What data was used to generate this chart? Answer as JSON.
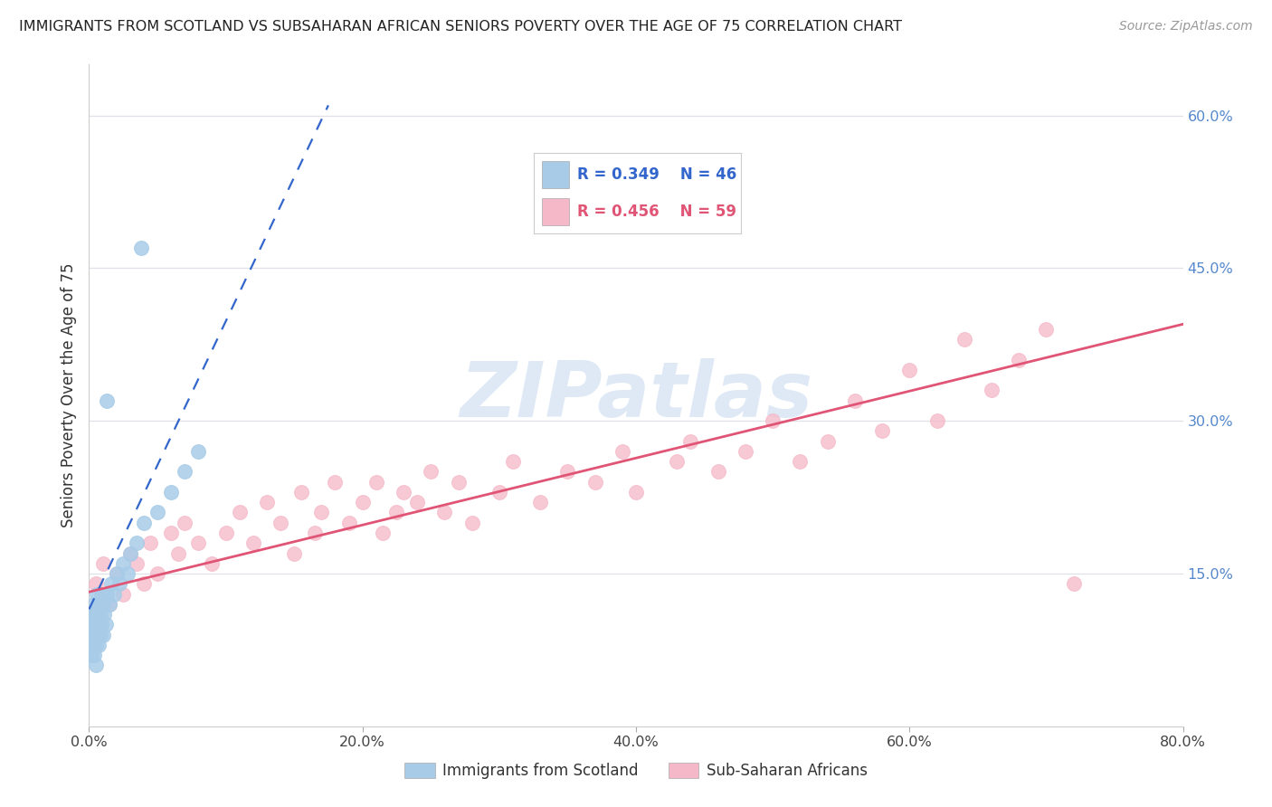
{
  "title": "IMMIGRANTS FROM SCOTLAND VS SUBSAHARAN AFRICAN SENIORS POVERTY OVER THE AGE OF 75 CORRELATION CHART",
  "source": "Source: ZipAtlas.com",
  "ylabel": "Seniors Poverty Over the Age of 75",
  "xlim": [
    0.0,
    0.8
  ],
  "ylim": [
    0.0,
    0.65
  ],
  "xticks": [
    0.0,
    0.2,
    0.4,
    0.6,
    0.8
  ],
  "xtick_labels": [
    "0.0%",
    "20.0%",
    "40.0%",
    "60.0%",
    "80.0%"
  ],
  "yticks_right": [
    0.15,
    0.3,
    0.45,
    0.6
  ],
  "ytick_labels_right": [
    "15.0%",
    "30.0%",
    "45.0%",
    "60.0%"
  ],
  "grid_color": "#e0e0e8",
  "background_color": "#ffffff",
  "watermark_text": "ZIPatlas",
  "watermark_color": "#c5d8f0",
  "scotland_color": "#a8cce8",
  "subsaharan_color": "#f5b8c8",
  "scotland_line_color": "#3366cc",
  "subsaharan_line_color": "#e05575",
  "scotland_line_style": "--",
  "subsaharan_line_style": "-",
  "legend_R1": "R = 0.349",
  "legend_N1": "N = 46",
  "legend_R2": "R = 0.456",
  "legend_N2": "N = 59",
  "legend_color1": "#3366cc",
  "legend_color2": "#e05575",
  "label1": "Immigrants from Scotland",
  "label2": "Sub-Saharan Africans",
  "scot_x": [
    0.001,
    0.001,
    0.002,
    0.002,
    0.002,
    0.003,
    0.003,
    0.003,
    0.003,
    0.004,
    0.004,
    0.004,
    0.005,
    0.005,
    0.005,
    0.006,
    0.006,
    0.006,
    0.007,
    0.007,
    0.007,
    0.008,
    0.008,
    0.009,
    0.009,
    0.01,
    0.01,
    0.011,
    0.012,
    0.013,
    0.015,
    0.016,
    0.018,
    0.02,
    0.022,
    0.025,
    0.028,
    0.03,
    0.035,
    0.04,
    0.05,
    0.06,
    0.07,
    0.08,
    0.013,
    0.038
  ],
  "scot_y": [
    0.08,
    0.09,
    0.07,
    0.1,
    0.11,
    0.08,
    0.09,
    0.1,
    0.12,
    0.07,
    0.09,
    0.11,
    0.08,
    0.1,
    0.06,
    0.09,
    0.11,
    0.13,
    0.1,
    0.08,
    0.12,
    0.09,
    0.11,
    0.1,
    0.13,
    0.09,
    0.12,
    0.11,
    0.1,
    0.13,
    0.12,
    0.14,
    0.13,
    0.15,
    0.14,
    0.16,
    0.15,
    0.17,
    0.18,
    0.2,
    0.21,
    0.23,
    0.25,
    0.27,
    0.32,
    0.47
  ],
  "sub_x": [
    0.005,
    0.01,
    0.015,
    0.02,
    0.025,
    0.03,
    0.035,
    0.04,
    0.045,
    0.05,
    0.06,
    0.065,
    0.07,
    0.08,
    0.09,
    0.1,
    0.11,
    0.12,
    0.13,
    0.14,
    0.15,
    0.155,
    0.165,
    0.17,
    0.18,
    0.19,
    0.2,
    0.21,
    0.215,
    0.225,
    0.23,
    0.24,
    0.25,
    0.26,
    0.27,
    0.28,
    0.3,
    0.31,
    0.33,
    0.35,
    0.37,
    0.39,
    0.4,
    0.43,
    0.44,
    0.46,
    0.48,
    0.5,
    0.52,
    0.54,
    0.56,
    0.58,
    0.6,
    0.62,
    0.64,
    0.66,
    0.68,
    0.7,
    0.72
  ],
  "sub_y": [
    0.14,
    0.16,
    0.12,
    0.15,
    0.13,
    0.17,
    0.16,
    0.14,
    0.18,
    0.15,
    0.19,
    0.17,
    0.2,
    0.18,
    0.16,
    0.19,
    0.21,
    0.18,
    0.22,
    0.2,
    0.17,
    0.23,
    0.19,
    0.21,
    0.24,
    0.2,
    0.22,
    0.24,
    0.19,
    0.21,
    0.23,
    0.22,
    0.25,
    0.21,
    0.24,
    0.2,
    0.23,
    0.26,
    0.22,
    0.25,
    0.24,
    0.27,
    0.23,
    0.26,
    0.28,
    0.25,
    0.27,
    0.3,
    0.26,
    0.28,
    0.32,
    0.29,
    0.35,
    0.3,
    0.38,
    0.33,
    0.36,
    0.39,
    0.14
  ],
  "scot_line_x0": 0.0,
  "scot_line_y0": 0.115,
  "scot_line_x1": 0.175,
  "scot_line_y1": 0.61,
  "sub_line_x0": 0.0,
  "sub_line_y0": 0.132,
  "sub_line_x1": 0.8,
  "sub_line_y1": 0.395
}
